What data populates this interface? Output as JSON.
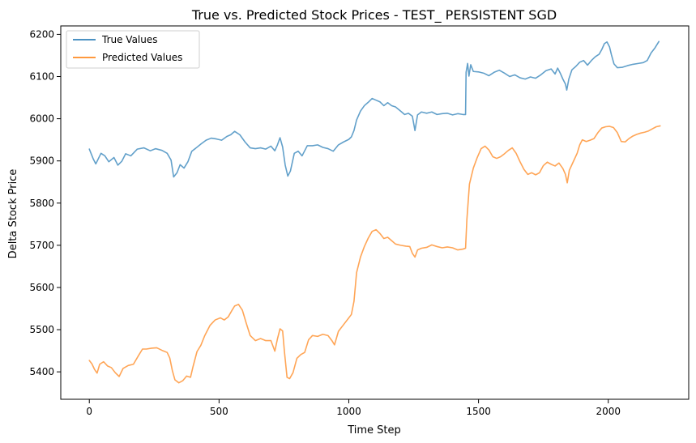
{
  "chart_data": {
    "type": "line",
    "title": "True vs. Predicted Stock Prices - TEST_ PERSISTENT SGD",
    "xlabel": "Time Step",
    "ylabel": "Delta Stock Price",
    "xlim": [
      -110,
      2310
    ],
    "ylim": [
      5335,
      6220
    ],
    "x_ticks": [
      0,
      500,
      1000,
      1500,
      2000
    ],
    "x_tick_labels": [
      "0",
      "500",
      "1000",
      "1500",
      "2000"
    ],
    "y_ticks": [
      5400,
      5500,
      5600,
      5700,
      5800,
      5900,
      6000,
      6100,
      6200
    ],
    "y_tick_labels": [
      "5400",
      "5500",
      "5600",
      "5700",
      "5800",
      "5900",
      "6000",
      "6100",
      "6200"
    ],
    "grid": false,
    "legend": "upper-left",
    "series": [
      {
        "name": "True Values",
        "color": "#1f77b4",
        "points": [
          [
            0,
            5928
          ],
          [
            15,
            5905
          ],
          [
            25,
            5893
          ],
          [
            45,
            5918
          ],
          [
            60,
            5912
          ],
          [
            75,
            5898
          ],
          [
            95,
            5908
          ],
          [
            110,
            5890
          ],
          [
            125,
            5899
          ],
          [
            140,
            5917
          ],
          [
            160,
            5912
          ],
          [
            185,
            5928
          ],
          [
            210,
            5931
          ],
          [
            235,
            5924
          ],
          [
            255,
            5929
          ],
          [
            280,
            5925
          ],
          [
            300,
            5918
          ],
          [
            315,
            5902
          ],
          [
            325,
            5862
          ],
          [
            338,
            5872
          ],
          [
            350,
            5891
          ],
          [
            365,
            5883
          ],
          [
            380,
            5898
          ],
          [
            395,
            5923
          ],
          [
            410,
            5930
          ],
          [
            430,
            5940
          ],
          [
            450,
            5949
          ],
          [
            470,
            5954
          ],
          [
            490,
            5952
          ],
          [
            510,
            5949
          ],
          [
            530,
            5958
          ],
          [
            545,
            5962
          ],
          [
            560,
            5970
          ],
          [
            580,
            5962
          ],
          [
            600,
            5945
          ],
          [
            620,
            5931
          ],
          [
            640,
            5929
          ],
          [
            660,
            5931
          ],
          [
            680,
            5928
          ],
          [
            700,
            5935
          ],
          [
            715,
            5924
          ],
          [
            725,
            5938
          ],
          [
            735,
            5955
          ],
          [
            745,
            5933
          ],
          [
            755,
            5890
          ],
          [
            765,
            5864
          ],
          [
            775,
            5876
          ],
          [
            790,
            5918
          ],
          [
            805,
            5923
          ],
          [
            820,
            5912
          ],
          [
            840,
            5936
          ],
          [
            860,
            5936
          ],
          [
            880,
            5938
          ],
          [
            900,
            5932
          ],
          [
            920,
            5929
          ],
          [
            940,
            5923
          ],
          [
            960,
            5938
          ],
          [
            980,
            5945
          ],
          [
            1000,
            5951
          ],
          [
            1010,
            5957
          ],
          [
            1020,
            5972
          ],
          [
            1030,
            5997
          ],
          [
            1045,
            6018
          ],
          [
            1060,
            6031
          ],
          [
            1075,
            6039
          ],
          [
            1090,
            6048
          ],
          [
            1105,
            6044
          ],
          [
            1120,
            6040
          ],
          [
            1135,
            6031
          ],
          [
            1150,
            6038
          ],
          [
            1165,
            6031
          ],
          [
            1180,
            6028
          ],
          [
            1200,
            6018
          ],
          [
            1215,
            6010
          ],
          [
            1230,
            6013
          ],
          [
            1245,
            6006
          ],
          [
            1255,
            5972
          ],
          [
            1265,
            6009
          ],
          [
            1280,
            6016
          ],
          [
            1300,
            6013
          ],
          [
            1320,
            6016
          ],
          [
            1340,
            6010
          ],
          [
            1360,
            6012
          ],
          [
            1380,
            6013
          ],
          [
            1400,
            6009
          ],
          [
            1420,
            6012
          ],
          [
            1440,
            6010
          ],
          [
            1450,
            6010
          ],
          [
            1452,
            6110
          ],
          [
            1458,
            6131
          ],
          [
            1463,
            6101
          ],
          [
            1470,
            6128
          ],
          [
            1480,
            6112
          ],
          [
            1500,
            6111
          ],
          [
            1520,
            6108
          ],
          [
            1540,
            6102
          ],
          [
            1560,
            6110
          ],
          [
            1580,
            6115
          ],
          [
            1600,
            6108
          ],
          [
            1620,
            6100
          ],
          [
            1640,
            6104
          ],
          [
            1660,
            6097
          ],
          [
            1680,
            6094
          ],
          [
            1700,
            6099
          ],
          [
            1720,
            6096
          ],
          [
            1740,
            6104
          ],
          [
            1760,
            6114
          ],
          [
            1780,
            6118
          ],
          [
            1795,
            6106
          ],
          [
            1805,
            6120
          ],
          [
            1815,
            6108
          ],
          [
            1825,
            6094
          ],
          [
            1835,
            6082
          ],
          [
            1840,
            6068
          ],
          [
            1848,
            6094
          ],
          [
            1860,
            6116
          ],
          [
            1875,
            6124
          ],
          [
            1890,
            6134
          ],
          [
            1905,
            6138
          ],
          [
            1920,
            6127
          ],
          [
            1935,
            6138
          ],
          [
            1950,
            6147
          ],
          [
            1965,
            6153
          ],
          [
            1975,
            6164
          ],
          [
            1985,
            6178
          ],
          [
            1995,
            6182
          ],
          [
            2005,
            6170
          ],
          [
            2012,
            6152
          ],
          [
            2022,
            6130
          ],
          [
            2035,
            6121
          ],
          [
            2055,
            6122
          ],
          [
            2075,
            6126
          ],
          [
            2095,
            6129
          ],
          [
            2115,
            6131
          ],
          [
            2135,
            6133
          ],
          [
            2150,
            6138
          ],
          [
            2165,
            6156
          ],
          [
            2180,
            6168
          ],
          [
            2195,
            6183
          ]
        ]
      },
      {
        "name": "Predicted Values",
        "color": "#ff7f0e",
        "points": [
          [
            0,
            5427
          ],
          [
            10,
            5419
          ],
          [
            20,
            5406
          ],
          [
            30,
            5397
          ],
          [
            40,
            5418
          ],
          [
            55,
            5424
          ],
          [
            70,
            5414
          ],
          [
            85,
            5410
          ],
          [
            100,
            5398
          ],
          [
            115,
            5389
          ],
          [
            130,
            5408
          ],
          [
            150,
            5415
          ],
          [
            170,
            5418
          ],
          [
            190,
            5439
          ],
          [
            205,
            5454
          ],
          [
            220,
            5454
          ],
          [
            240,
            5456
          ],
          [
            260,
            5457
          ],
          [
            280,
            5451
          ],
          [
            300,
            5446
          ],
          [
            310,
            5433
          ],
          [
            320,
            5403
          ],
          [
            330,
            5381
          ],
          [
            345,
            5374
          ],
          [
            360,
            5379
          ],
          [
            375,
            5390
          ],
          [
            390,
            5387
          ],
          [
            400,
            5413
          ],
          [
            415,
            5448
          ],
          [
            430,
            5463
          ],
          [
            445,
            5486
          ],
          [
            465,
            5510
          ],
          [
            485,
            5523
          ],
          [
            505,
            5528
          ],
          [
            520,
            5523
          ],
          [
            535,
            5530
          ],
          [
            550,
            5546
          ],
          [
            560,
            5556
          ],
          [
            575,
            5560
          ],
          [
            590,
            5546
          ],
          [
            605,
            5515
          ],
          [
            620,
            5486
          ],
          [
            640,
            5474
          ],
          [
            660,
            5479
          ],
          [
            680,
            5474
          ],
          [
            700,
            5474
          ],
          [
            715,
            5449
          ],
          [
            725,
            5478
          ],
          [
            735,
            5502
          ],
          [
            745,
            5497
          ],
          [
            752,
            5448
          ],
          [
            762,
            5387
          ],
          [
            772,
            5384
          ],
          [
            785,
            5398
          ],
          [
            800,
            5432
          ],
          [
            815,
            5441
          ],
          [
            830,
            5446
          ],
          [
            845,
            5476
          ],
          [
            860,
            5486
          ],
          [
            880,
            5484
          ],
          [
            900,
            5489
          ],
          [
            920,
            5486
          ],
          [
            935,
            5474
          ],
          [
            945,
            5464
          ],
          [
            960,
            5496
          ],
          [
            980,
            5512
          ],
          [
            1000,
            5528
          ],
          [
            1010,
            5536
          ],
          [
            1020,
            5567
          ],
          [
            1030,
            5635
          ],
          [
            1045,
            5672
          ],
          [
            1060,
            5697
          ],
          [
            1075,
            5717
          ],
          [
            1090,
            5733
          ],
          [
            1105,
            5737
          ],
          [
            1120,
            5728
          ],
          [
            1135,
            5716
          ],
          [
            1150,
            5719
          ],
          [
            1165,
            5711
          ],
          [
            1180,
            5703
          ],
          [
            1200,
            5700
          ],
          [
            1220,
            5698
          ],
          [
            1235,
            5697
          ],
          [
            1245,
            5681
          ],
          [
            1255,
            5672
          ],
          [
            1265,
            5689
          ],
          [
            1280,
            5693
          ],
          [
            1300,
            5695
          ],
          [
            1320,
            5701
          ],
          [
            1340,
            5697
          ],
          [
            1360,
            5694
          ],
          [
            1380,
            5696
          ],
          [
            1400,
            5694
          ],
          [
            1420,
            5689
          ],
          [
            1440,
            5691
          ],
          [
            1450,
            5693
          ],
          [
            1455,
            5760
          ],
          [
            1465,
            5845
          ],
          [
            1480,
            5883
          ],
          [
            1495,
            5908
          ],
          [
            1510,
            5929
          ],
          [
            1525,
            5935
          ],
          [
            1540,
            5926
          ],
          [
            1555,
            5910
          ],
          [
            1570,
            5906
          ],
          [
            1585,
            5910
          ],
          [
            1600,
            5917
          ],
          [
            1615,
            5925
          ],
          [
            1630,
            5931
          ],
          [
            1645,
            5918
          ],
          [
            1660,
            5898
          ],
          [
            1675,
            5880
          ],
          [
            1690,
            5868
          ],
          [
            1705,
            5872
          ],
          [
            1720,
            5867
          ],
          [
            1735,
            5872
          ],
          [
            1750,
            5889
          ],
          [
            1765,
            5897
          ],
          [
            1780,
            5892
          ],
          [
            1795,
            5888
          ],
          [
            1810,
            5895
          ],
          [
            1825,
            5882
          ],
          [
            1835,
            5868
          ],
          [
            1842,
            5848
          ],
          [
            1850,
            5878
          ],
          [
            1865,
            5898
          ],
          [
            1880,
            5918
          ],
          [
            1890,
            5938
          ],
          [
            1900,
            5950
          ],
          [
            1915,
            5946
          ],
          [
            1930,
            5949
          ],
          [
            1945,
            5953
          ],
          [
            1960,
            5967
          ],
          [
            1975,
            5978
          ],
          [
            1990,
            5981
          ],
          [
            2005,
            5982
          ],
          [
            2020,
            5979
          ],
          [
            2035,
            5967
          ],
          [
            2050,
            5946
          ],
          [
            2065,
            5945
          ],
          [
            2080,
            5953
          ],
          [
            2095,
            5959
          ],
          [
            2110,
            5963
          ],
          [
            2125,
            5966
          ],
          [
            2140,
            5968
          ],
          [
            2155,
            5971
          ],
          [
            2170,
            5976
          ],
          [
            2185,
            5981
          ],
          [
            2200,
            5983
          ]
        ]
      }
    ]
  }
}
